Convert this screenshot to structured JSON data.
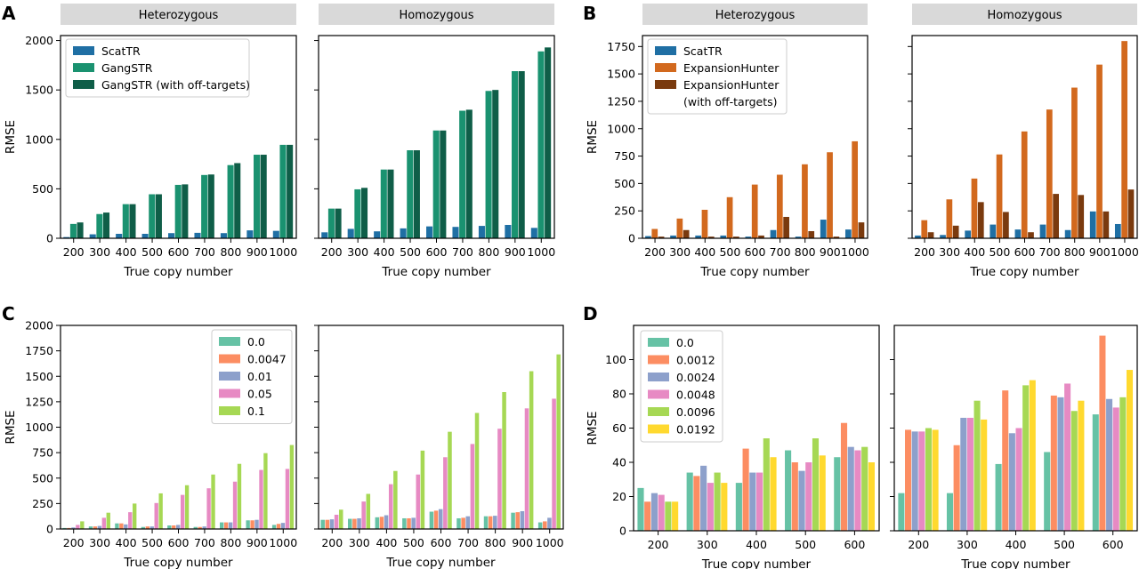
{
  "chart_data": [
    {
      "panel": "A",
      "type": "bar",
      "facets": [
        "Heterozygous",
        "Homozygous"
      ],
      "categories": [
        "200",
        "300",
        "400",
        "500",
        "600",
        "700",
        "800",
        "900",
        "1000"
      ],
      "xlabel": "True copy number",
      "ylabel": "RMSE",
      "ylim": [
        0,
        2050
      ],
      "yticks": [
        0,
        500,
        1000,
        1500,
        2000
      ],
      "legend": {
        "entries": [
          "ScatTR",
          "GangSTR",
          "GangSTR (with off-targets)"
        ],
        "placement": "top-left",
        "facet": 0
      },
      "colors": [
        "#1f6fa4",
        "#1a9270",
        "#0f5e48"
      ],
      "series_by_facet": [
        [
          {
            "name": "ScatTR",
            "values": [
              12,
              40,
              45,
              45,
              52,
              55,
              52,
              80,
              75
            ]
          },
          {
            "name": "GangSTR",
            "values": [
              145,
              245,
              345,
              445,
              540,
              640,
              740,
              845,
              945
            ]
          },
          {
            "name": "GangSTR (with off-targets)",
            "values": [
              160,
              260,
              345,
              445,
              545,
              645,
              760,
              845,
              945
            ]
          }
        ],
        [
          {
            "name": "ScatTR",
            "values": [
              60,
              95,
              70,
              100,
              120,
              115,
              125,
              135,
              105
            ]
          },
          {
            "name": "GangSTR",
            "values": [
              300,
              495,
              695,
              890,
              1090,
              1290,
              1490,
              1690,
              1890
            ]
          },
          {
            "name": "GangSTR (with off-targets)",
            "values": [
              300,
              510,
              695,
              890,
              1090,
              1300,
              1500,
              1690,
              1930
            ]
          }
        ]
      ]
    },
    {
      "panel": "B",
      "type": "bar",
      "facets": [
        "Heterozygous",
        "Homozygous"
      ],
      "categories": [
        "200",
        "300",
        "400",
        "500",
        "600",
        "700",
        "800",
        "900",
        "1000"
      ],
      "xlabel": "True copy number",
      "ylabel": "RMSE",
      "ylim": [
        0,
        1850
      ],
      "yticks": [
        0,
        250,
        500,
        750,
        1000,
        1250,
        1500,
        1750
      ],
      "legend": {
        "entries": [
          "ScatTR",
          "ExpansionHunter",
          "ExpansionHunter",
          "(with off-targets)"
        ],
        "placement": "top-left",
        "facet": 0
      },
      "colors": [
        "#1f6fa4",
        "#d2691e",
        "#7a3a0e"
      ],
      "series_by_facet": [
        [
          {
            "name": "ScatTR",
            "values": [
              20,
              25,
              25,
              25,
              15,
              75,
              15,
              170,
              80
            ]
          },
          {
            "name": "ExpansionHunter",
            "values": [
              85,
              180,
              260,
              375,
              490,
              580,
              675,
              785,
              885
            ]
          },
          {
            "name": "ExpansionHunter (with off-targets)",
            "values": [
              15,
              75,
              15,
              15,
              25,
              195,
              65,
              15,
              145
            ]
          }
        ],
        [
          {
            "name": "ScatTR",
            "values": [
              25,
              30,
              70,
              125,
              80,
              125,
              75,
              245,
              130
            ]
          },
          {
            "name": "ExpansionHunter",
            "values": [
              165,
              355,
              545,
              765,
              975,
              1175,
              1375,
              1585,
              1800
            ]
          },
          {
            "name": "ExpansionHunter (with off-targets)",
            "values": [
              55,
              115,
              330,
              240,
              55,
              405,
              395,
              245,
              445
            ]
          }
        ]
      ]
    },
    {
      "panel": "C",
      "type": "bar",
      "facets": [
        "Heterozygous",
        "Homozygous"
      ],
      "categories": [
        "200",
        "300",
        "400",
        "500",
        "600",
        "700",
        "800",
        "900",
        "1000"
      ],
      "xlabel": "True copy number",
      "ylabel": "RMSE",
      "ylim": [
        0,
        2000
      ],
      "yticks": [
        0,
        250,
        500,
        750,
        1000,
        1250,
        1500,
        1750,
        2000
      ],
      "legend": {
        "entries": [
          "0.0",
          "0.0047",
          "0.01",
          "0.05",
          "0.1"
        ],
        "placement": "top-right",
        "facet": 0
      },
      "colors": [
        "#66c2a5",
        "#fc8d62",
        "#8da0cb",
        "#e78ac3",
        "#a6d854"
      ],
      "series_by_facet": [
        [
          {
            "name": "0.0",
            "values": [
              10,
              25,
              55,
              20,
              35,
              20,
              65,
              85,
              40
            ]
          },
          {
            "name": "0.0047",
            "values": [
              10,
              25,
              55,
              25,
              35,
              20,
              65,
              85,
              50
            ]
          },
          {
            "name": "0.01",
            "values": [
              15,
              30,
              45,
              25,
              40,
              25,
              65,
              90,
              60
            ]
          },
          {
            "name": "0.05",
            "values": [
              40,
              110,
              165,
              255,
              335,
              400,
              465,
              580,
              590
            ]
          },
          {
            "name": "0.1",
            "values": [
              75,
              160,
              250,
              350,
              430,
              535,
              640,
              745,
              825
            ]
          }
        ],
        [
          {
            "name": "0.0",
            "values": [
              90,
              100,
              115,
              105,
              170,
              105,
              125,
              160,
              65
            ]
          },
          {
            "name": "0.0047",
            "values": [
              90,
              100,
              120,
              105,
              180,
              110,
              125,
              165,
              75
            ]
          },
          {
            "name": "0.01",
            "values": [
              95,
              105,
              135,
              110,
              195,
              125,
              130,
              175,
              110
            ]
          },
          {
            "name": "0.05",
            "values": [
              140,
              270,
              440,
              535,
              705,
              835,
              985,
              1185,
              1280
            ]
          },
          {
            "name": "0.1",
            "values": [
              190,
              345,
              570,
              770,
              955,
              1140,
              1345,
              1550,
              1715
            ]
          }
        ]
      ]
    },
    {
      "panel": "D",
      "type": "bar",
      "facets": [
        "",
        ""
      ],
      "categories": [
        "200",
        "300",
        "400",
        "500",
        "600"
      ],
      "xlabel": "True copy number",
      "ylabel": "RMSE",
      "ylim": [
        0,
        120
      ],
      "yticks": [
        0,
        20,
        40,
        60,
        80,
        100
      ],
      "legend": {
        "entries": [
          "0.0",
          "0.0012",
          "0.0024",
          "0.0048",
          "0.0096",
          "0.0192"
        ],
        "placement": "top-left",
        "facet": 0
      },
      "colors": [
        "#66c2a5",
        "#fc8d62",
        "#8da0cb",
        "#e78ac3",
        "#a6d854",
        "#ffd92f"
      ],
      "series_by_facet": [
        [
          {
            "name": "0.0",
            "values": [
              25,
              34,
              28,
              47,
              43
            ]
          },
          {
            "name": "0.0012",
            "values": [
              17,
              32,
              48,
              40,
              63
            ]
          },
          {
            "name": "0.0024",
            "values": [
              22,
              38,
              34,
              35,
              49
            ]
          },
          {
            "name": "0.0048",
            "values": [
              21,
              28,
              34,
              40,
              47
            ]
          },
          {
            "name": "0.0096",
            "values": [
              17,
              34,
              54,
              54,
              49
            ]
          },
          {
            "name": "0.0192",
            "values": [
              17,
              28,
              43,
              44,
              40
            ]
          }
        ],
        [
          {
            "name": "0.0",
            "values": [
              22,
              22,
              39,
              46,
              68
            ]
          },
          {
            "name": "0.0012",
            "values": [
              59,
              50,
              82,
              79,
              114
            ]
          },
          {
            "name": "0.0024",
            "values": [
              58,
              66,
              57,
              78,
              77
            ]
          },
          {
            "name": "0.0048",
            "values": [
              58,
              66,
              60,
              86,
              72
            ]
          },
          {
            "name": "0.0096",
            "values": [
              60,
              76,
              85,
              70,
              78
            ]
          },
          {
            "name": "0.0192",
            "values": [
              59,
              65,
              88,
              76,
              94
            ]
          }
        ]
      ]
    }
  ]
}
